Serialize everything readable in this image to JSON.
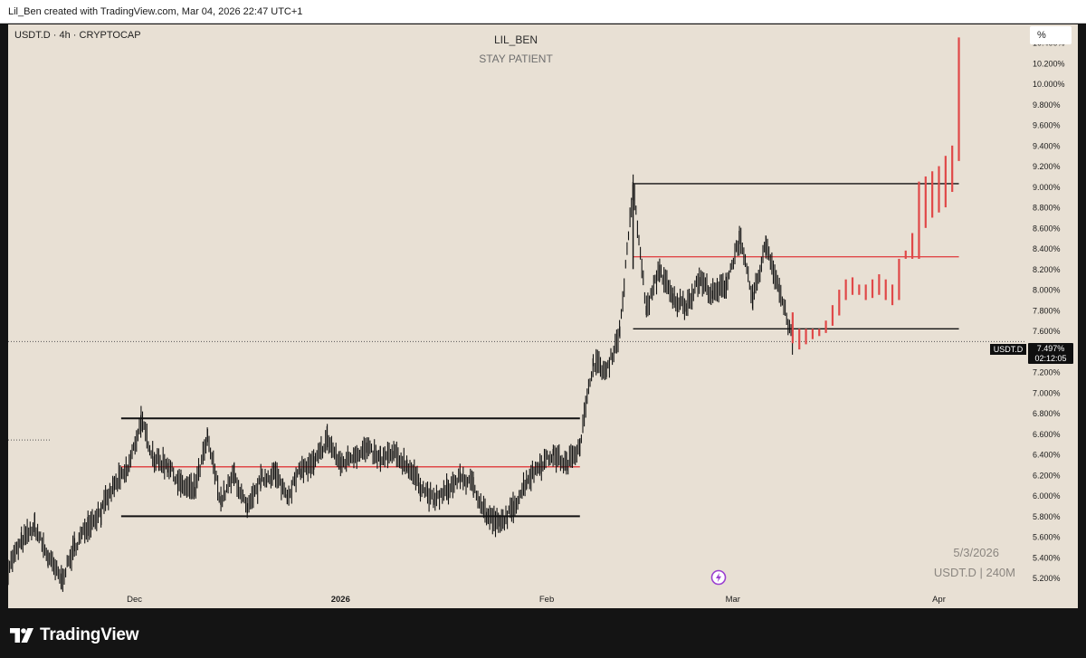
{
  "header": {
    "credit": "Lil_Ben created with TradingView.com, Mar 04, 2026 22:47 UTC+1"
  },
  "chart_header": {
    "symbol_line": "USDT.D · 4h · CRYPTOCAP",
    "title": "LIL_BEN",
    "subtitle": "STAY PATIENT"
  },
  "controls": {
    "scale_mode": "%"
  },
  "price_badge": {
    "symbol": "USDT.D",
    "price": "7.497%",
    "countdown": "02:12:05"
  },
  "watermark": {
    "date": "5/3/2026",
    "symbol": "USDT.D | 240M"
  },
  "footer": {
    "brand": "TradingView"
  },
  "colors": {
    "background": "#e8e0d4",
    "candle": "#111111",
    "projection": "#e04848",
    "level_red": "#e04848",
    "frame": "#141414"
  },
  "icons": {
    "bolt": "bolt-icon",
    "logo": "tradingview-logo-icon"
  },
  "chart_data": {
    "type": "line",
    "ylim": [
      5.1,
      10.55
    ],
    "y_ticks": [
      "5.200%",
      "5.400%",
      "5.600%",
      "5.800%",
      "6.000%",
      "6.200%",
      "6.400%",
      "6.600%",
      "6.800%",
      "7.000%",
      "7.200%",
      "7.400%",
      "7.600%",
      "7.800%",
      "8.000%",
      "8.200%",
      "8.400%",
      "8.600%",
      "8.800%",
      "9.000%",
      "9.200%",
      "9.400%",
      "9.600%",
      "9.800%",
      "10.000%",
      "10.200%",
      "10.400%"
    ],
    "x_labels": [
      {
        "date": "2025-12-01",
        "label": "Dec",
        "bold": false
      },
      {
        "date": "2026-01-01",
        "label": "2026",
        "bold": true
      },
      {
        "date": "2026-02-01",
        "label": "Feb",
        "bold": false
      },
      {
        "date": "2026-03-01",
        "label": "Mar",
        "bold": false
      },
      {
        "date": "2026-04-01",
        "label": "Apr",
        "bold": false
      }
    ],
    "x_range": [
      "2025-11-12",
      "2026-04-14"
    ],
    "price_series": [
      [
        "2025-11-12",
        5.3
      ],
      [
        "2025-11-14",
        5.55
      ],
      [
        "2025-11-16",
        5.7
      ],
      [
        "2025-11-18",
        5.4
      ],
      [
        "2025-11-20",
        5.18
      ],
      [
        "2025-11-22",
        5.5
      ],
      [
        "2025-11-24",
        5.72
      ],
      [
        "2025-11-26",
        5.85
      ],
      [
        "2025-11-28",
        6.1
      ],
      [
        "2025-11-30",
        6.25
      ],
      [
        "2025-12-02",
        6.72
      ],
      [
        "2025-12-04",
        6.35
      ],
      [
        "2025-12-06",
        6.3
      ],
      [
        "2025-12-08",
        6.1
      ],
      [
        "2025-12-10",
        6.05
      ],
      [
        "2025-12-12",
        6.55
      ],
      [
        "2025-12-14",
        5.95
      ],
      [
        "2025-12-16",
        6.2
      ],
      [
        "2025-12-18",
        5.85
      ],
      [
        "2025-12-20",
        6.15
      ],
      [
        "2025-12-22",
        6.22
      ],
      [
        "2025-12-24",
        6.0
      ],
      [
        "2025-12-26",
        6.25
      ],
      [
        "2025-12-28",
        6.3
      ],
      [
        "2025-12-30",
        6.55
      ],
      [
        "2026-01-01",
        6.3
      ],
      [
        "2026-01-03",
        6.4
      ],
      [
        "2026-01-05",
        6.45
      ],
      [
        "2026-01-07",
        6.35
      ],
      [
        "2026-01-09",
        6.4
      ],
      [
        "2026-01-11",
        6.3
      ],
      [
        "2026-01-13",
        6.1
      ],
      [
        "2026-01-15",
        5.95
      ],
      [
        "2026-01-17",
        6.05
      ],
      [
        "2026-01-19",
        6.18
      ],
      [
        "2026-01-21",
        6.1
      ],
      [
        "2026-01-23",
        5.8
      ],
      [
        "2026-01-25",
        5.72
      ],
      [
        "2026-01-27",
        5.88
      ],
      [
        "2026-01-29",
        6.15
      ],
      [
        "2026-01-31",
        6.3
      ],
      [
        "2026-02-02",
        6.4
      ],
      [
        "2026-02-04",
        6.3
      ],
      [
        "2026-02-06",
        6.5
      ],
      [
        "2026-02-08",
        7.3
      ],
      [
        "2026-02-10",
        7.2
      ],
      [
        "2026-02-12",
        7.6
      ],
      [
        "2026-02-14",
        9.0
      ],
      [
        "2026-02-16",
        7.8
      ],
      [
        "2026-02-18",
        8.2
      ],
      [
        "2026-02-20",
        7.9
      ],
      [
        "2026-02-22",
        7.85
      ],
      [
        "2026-02-24",
        8.1
      ],
      [
        "2026-02-26",
        7.95
      ],
      [
        "2026-02-28",
        8.05
      ],
      [
        "2026-03-02",
        8.5
      ],
      [
        "2026-03-04",
        7.9
      ],
      [
        "2026-03-06",
        8.45
      ],
      [
        "2026-03-08",
        8.0
      ],
      [
        "2026-03-10",
        7.5
      ]
    ],
    "projection_bars": [
      [
        "2026-03-10",
        7.48,
        7.78
      ],
      [
        "2026-03-11",
        7.42,
        7.62
      ],
      [
        "2026-03-12",
        7.47,
        7.62
      ],
      [
        "2026-03-13",
        7.52,
        7.62
      ],
      [
        "2026-03-14",
        7.55,
        7.62
      ],
      [
        "2026-03-15",
        7.58,
        7.7
      ],
      [
        "2026-03-16",
        7.65,
        7.85
      ],
      [
        "2026-03-17",
        7.75,
        8.0
      ],
      [
        "2026-03-18",
        7.9,
        8.1
      ],
      [
        "2026-03-19",
        7.95,
        8.12
      ],
      [
        "2026-03-20",
        7.95,
        8.05
      ],
      [
        "2026-03-21",
        7.9,
        8.05
      ],
      [
        "2026-03-22",
        7.92,
        8.1
      ],
      [
        "2026-03-23",
        7.95,
        8.15
      ],
      [
        "2026-03-24",
        7.9,
        8.1
      ],
      [
        "2026-03-25",
        7.85,
        8.05
      ],
      [
        "2026-03-26",
        7.9,
        8.3
      ],
      [
        "2026-03-27",
        8.3,
        8.38
      ],
      [
        "2026-03-28",
        8.3,
        8.55
      ],
      [
        "2026-03-29",
        8.3,
        9.05
      ],
      [
        "2026-03-30",
        8.6,
        9.1
      ],
      [
        "2026-03-31",
        8.7,
        9.15
      ],
      [
        "2026-04-01",
        8.75,
        9.2
      ],
      [
        "2026-04-02",
        8.8,
        9.3
      ],
      [
        "2026-04-03",
        8.95,
        9.4
      ],
      [
        "2026-04-04",
        9.25,
        10.45
      ]
    ],
    "levels": [
      {
        "y": 6.75,
        "from": "2025-11-29",
        "to": "2026-02-06",
        "color": "#111111"
      },
      {
        "y": 6.28,
        "from": "2025-11-29",
        "to": "2026-02-06",
        "color": "#e04848"
      },
      {
        "y": 5.8,
        "from": "2025-11-29",
        "to": "2026-02-06",
        "color": "#111111"
      },
      {
        "y": 9.03,
        "from": "2026-02-14",
        "to": "2026-04-04",
        "color": "#111111"
      },
      {
        "y": 8.32,
        "from": "2026-02-14",
        "to": "2026-04-04",
        "color": "#e04848"
      },
      {
        "y": 7.62,
        "from": "2026-02-14",
        "to": "2026-04-04",
        "color": "#111111"
      }
    ],
    "last_price": 7.497
  }
}
